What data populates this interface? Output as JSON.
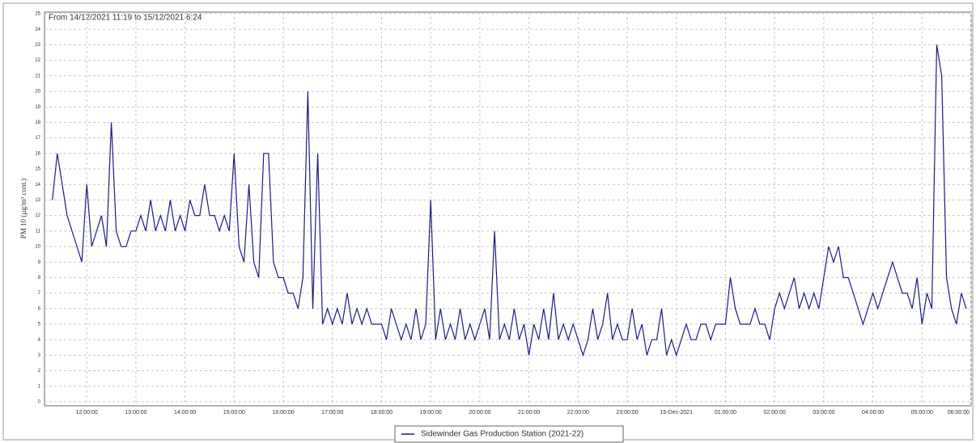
{
  "chart_data": {
    "type": "line",
    "subtitle": "From 14/12/2021 11:19 to 15/12/2021 6:24",
    "y_label": "PM 10 (µg/m³ cont.)",
    "xlim": [
      11.14,
      30
    ],
    "ylim": [
      0,
      25
    ],
    "yticks": [
      0,
      1,
      2,
      3,
      4,
      5,
      6,
      7,
      8,
      9,
      10,
      11,
      12,
      13,
      14,
      15,
      16,
      17,
      18,
      19,
      20,
      21,
      22,
      23,
      24,
      25
    ],
    "xticks": [
      {
        "value": 12,
        "label": "12:00:00"
      },
      {
        "value": 13,
        "label": "13:00:00"
      },
      {
        "value": 14,
        "label": "14:00:00"
      },
      {
        "value": 15,
        "label": "15:00:00"
      },
      {
        "value": 16,
        "label": "16:00:00"
      },
      {
        "value": 17,
        "label": "17:00:00"
      },
      {
        "value": 18,
        "label": "18:00:00"
      },
      {
        "value": 19,
        "label": "19:00:00"
      },
      {
        "value": 20,
        "label": "20:00:00"
      },
      {
        "value": 21,
        "label": "21:00:00"
      },
      {
        "value": 22,
        "label": "22:00:00"
      },
      {
        "value": 23,
        "label": "23:00:00"
      },
      {
        "value": 24,
        "label": "15-Dec-2021"
      },
      {
        "value": 25,
        "label": "01:00:00"
      },
      {
        "value": 26,
        "label": "02:00:00"
      },
      {
        "value": 27,
        "label": "03:00:00"
      },
      {
        "value": 28,
        "label": "04:00:00"
      },
      {
        "value": 29,
        "label": "05:00:00"
      },
      {
        "value": 30,
        "label": "06:00:00"
      }
    ],
    "grid": true,
    "x": [
      11.3,
      11.4,
      11.5,
      11.6,
      11.7,
      11.8,
      11.9,
      12.0,
      12.1,
      12.2,
      12.3,
      12.4,
      12.5,
      12.6,
      12.7,
      12.8,
      12.9,
      13.0,
      13.1,
      13.2,
      13.3,
      13.4,
      13.5,
      13.6,
      13.7,
      13.8,
      13.9,
      14.0,
      14.1,
      14.2,
      14.3,
      14.4,
      14.5,
      14.6,
      14.7,
      14.8,
      14.9,
      15.0,
      15.1,
      15.2,
      15.3,
      15.4,
      15.5,
      15.6,
      15.7,
      15.8,
      15.9,
      16.0,
      16.1,
      16.2,
      16.3,
      16.4,
      16.5,
      16.6,
      16.7,
      16.8,
      16.9,
      17.0,
      17.1,
      17.2,
      17.3,
      17.4,
      17.5,
      17.6,
      17.7,
      17.8,
      17.9,
      18.0,
      18.1,
      18.2,
      18.3,
      18.4,
      18.5,
      18.6,
      18.7,
      18.8,
      18.9,
      19.0,
      19.1,
      19.2,
      19.3,
      19.4,
      19.5,
      19.6,
      19.7,
      19.8,
      19.9,
      20.0,
      20.1,
      20.2,
      20.3,
      20.4,
      20.5,
      20.6,
      20.7,
      20.8,
      20.9,
      21.0,
      21.1,
      21.2,
      21.3,
      21.4,
      21.5,
      21.6,
      21.7,
      21.8,
      21.9,
      22.0,
      22.1,
      22.2,
      22.3,
      22.4,
      22.5,
      22.6,
      22.7,
      22.8,
      22.9,
      23.0,
      23.1,
      23.2,
      23.3,
      23.4,
      23.5,
      23.6,
      23.7,
      23.8,
      23.9,
      24.0,
      24.1,
      24.2,
      24.3,
      24.4,
      24.5,
      24.6,
      24.7,
      24.8,
      24.9,
      25.0,
      25.1,
      25.2,
      25.3,
      25.4,
      25.5,
      25.6,
      25.7,
      25.8,
      25.9,
      26.0,
      26.1,
      26.2,
      26.3,
      26.4,
      26.5,
      26.6,
      26.7,
      26.8,
      26.9,
      27.0,
      27.1,
      27.2,
      27.3,
      27.4,
      27.5,
      27.6,
      27.7,
      27.8,
      27.9,
      28.0,
      28.1,
      28.2,
      28.3,
      28.4,
      28.5,
      28.6,
      28.7,
      28.8,
      28.9,
      29.0,
      29.1,
      29.2,
      29.3,
      29.4,
      29.5,
      29.6,
      29.7,
      29.8,
      29.9
    ],
    "series": [
      {
        "name": "Sidewinder Gas Production Station (2021-22)",
        "color": "#1c1c80",
        "values": [
          13,
          16,
          14,
          12,
          11,
          10,
          9,
          14,
          10,
          11,
          12,
          10,
          18,
          11,
          10,
          10,
          11,
          11,
          12,
          11,
          13,
          11,
          12,
          11,
          13,
          11,
          12,
          11,
          13,
          12,
          12,
          14,
          12,
          12,
          11,
          12,
          11,
          16,
          10,
          9,
          14,
          9,
          8,
          16,
          16,
          9,
          8,
          8,
          7,
          7,
          6,
          8,
          20,
          6,
          16,
          5,
          6,
          5,
          6,
          5,
          7,
          5,
          6,
          5,
          6,
          5,
          5,
          5,
          4,
          6,
          5,
          4,
          5,
          4,
          6,
          4,
          5,
          13,
          4,
          6,
          4,
          5,
          4,
          6,
          4,
          5,
          4,
          5,
          6,
          4,
          11,
          4,
          5,
          4,
          6,
          4,
          5,
          3,
          5,
          4,
          6,
          4,
          7,
          4,
          5,
          4,
          5,
          4,
          3,
          4,
          6,
          4,
          5,
          7,
          4,
          5,
          4,
          4,
          6,
          4,
          5,
          3,
          4,
          4,
          6,
          3,
          4,
          3,
          4,
          5,
          4,
          4,
          5,
          5,
          4,
          5,
          5,
          5,
          8,
          6,
          5,
          5,
          5,
          6,
          5,
          5,
          4,
          6,
          7,
          6,
          7,
          8,
          6,
          7,
          6,
          7,
          6,
          8,
          10,
          9,
          10,
          8,
          8,
          7,
          6,
          5,
          6,
          7,
          6,
          7,
          8,
          9,
          8,
          7,
          7,
          6,
          8,
          5,
          7,
          6,
          23,
          21,
          8,
          6,
          5,
          7,
          6
        ]
      }
    ]
  }
}
